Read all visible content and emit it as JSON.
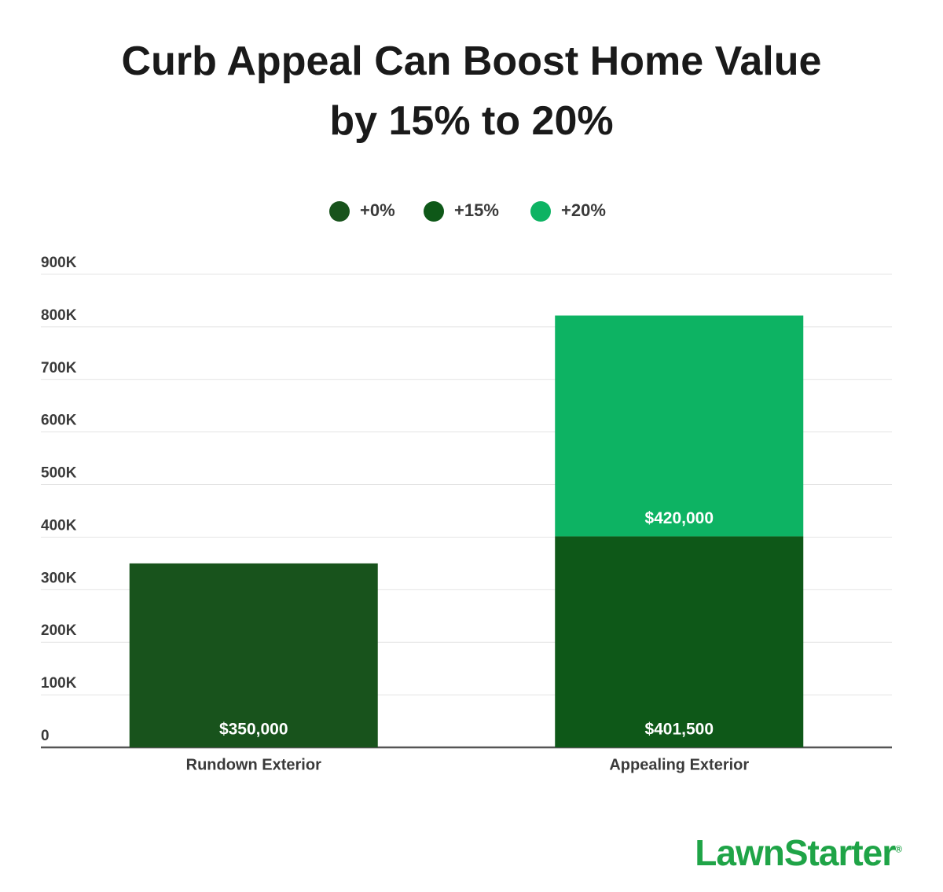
{
  "chart_data": {
    "type": "stacked-bar",
    "title": "Curb Appeal Can Boost Home Value by 15% to 20%",
    "categories": [
      "Rundown Exterior",
      "Appealing Exterior"
    ],
    "series": [
      {
        "name": "+0%",
        "color": "#18531c",
        "values": [
          350000,
          null
        ],
        "value_labels": [
          "$350,000",
          null
        ]
      },
      {
        "name": "+15%",
        "color": "#0e5818",
        "values": [
          null,
          401500
        ],
        "value_labels": [
          null,
          "$401,500"
        ]
      },
      {
        "name": "+20%",
        "color": "#0db363",
        "values": [
          null,
          420000
        ],
        "value_labels": [
          null,
          "$420,000"
        ]
      }
    ],
    "ylim": [
      0,
      900000
    ],
    "yticks": [
      0,
      {
        "value": 100000,
        "label": "100K"
      },
      {
        "value": 200000,
        "label": "200K"
      },
      {
        "value": 300000,
        "label": "300K"
      },
      {
        "value": 400000,
        "label": "400K"
      },
      {
        "value": 500000,
        "label": "500K"
      },
      {
        "value": 600000,
        "label": "600K"
      },
      {
        "value": 700000,
        "label": "700K"
      },
      {
        "value": 800000,
        "label": "800K"
      },
      {
        "value": 900000,
        "label": "900K"
      }
    ],
    "grid": true,
    "legend": "top"
  },
  "logo": {
    "text": "LawnStarter",
    "mark": "®"
  }
}
